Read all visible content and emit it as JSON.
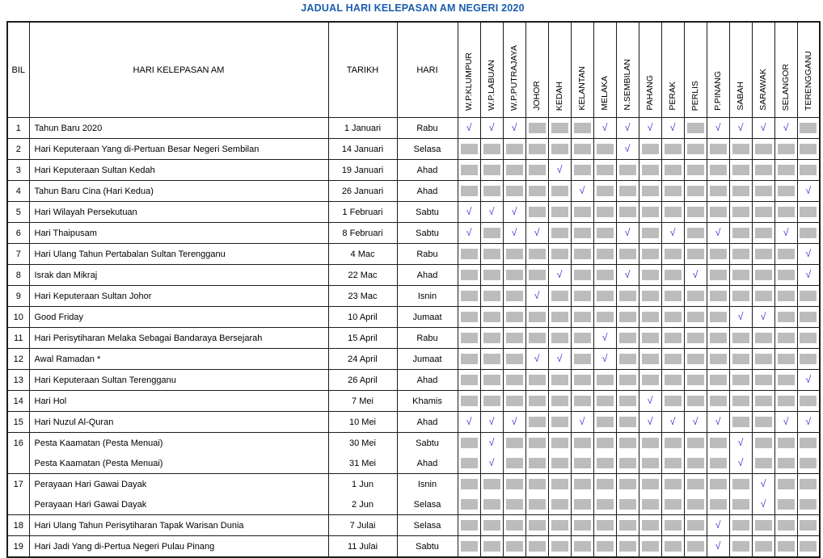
{
  "title": "JADUAL HARI KELEPASAN AM NEGERI 2020",
  "check_symbol": "√",
  "colors": {
    "title": "#1b5eae",
    "check": "#3e3ed6",
    "gray_box": "#bcbcbc",
    "border": "#1c1c1c"
  },
  "legend": {
    "check_means": "holiday-observed",
    "gray_box_means": "holiday-not-observed"
  },
  "table": {
    "columns": {
      "bil": "BIL",
      "name": "HARI KELEPASAN AM",
      "date": "TARIKH",
      "day": "HARI"
    },
    "states": [
      "W.P.KLUMPUR",
      "W.P.LABUAN",
      "W.P.PUTRAJAYA",
      "JOHOR",
      "KEDAH",
      "KELANTAN",
      "MELAKA",
      "N.SEMBILAN",
      "PAHANG",
      "PERAK",
      "PERLIS",
      "P.PINANG",
      "SABAH",
      "SARAWAK",
      "SELANGOR",
      "TERENGGANU"
    ],
    "rows": [
      {
        "bil": "1",
        "name": "Tahun Baru 2020",
        "date": "1 Januari",
        "day": "Rabu",
        "cont": false,
        "marks": [
          1,
          1,
          1,
          0,
          0,
          0,
          1,
          1,
          1,
          1,
          0,
          1,
          1,
          1,
          1,
          0
        ]
      },
      {
        "bil": "2",
        "name": "Hari Keputeraan Yang di-Pertuan Besar Negeri Sembilan",
        "date": "14 Januari",
        "day": "Selasa",
        "cont": false,
        "marks": [
          0,
          0,
          0,
          0,
          0,
          0,
          0,
          1,
          0,
          0,
          0,
          0,
          0,
          0,
          0,
          0
        ]
      },
      {
        "bil": "3",
        "name": "Hari Keputeraan Sultan Kedah",
        "date": "19 Januari",
        "day": "Ahad",
        "cont": false,
        "marks": [
          0,
          0,
          0,
          0,
          1,
          0,
          0,
          0,
          0,
          0,
          0,
          0,
          0,
          0,
          0,
          0
        ]
      },
      {
        "bil": "4",
        "name": "Tahun Baru Cina (Hari Kedua)",
        "date": "26 Januari",
        "day": "Ahad",
        "cont": false,
        "marks": [
          0,
          0,
          0,
          0,
          0,
          1,
          0,
          0,
          0,
          0,
          0,
          0,
          0,
          0,
          0,
          1
        ]
      },
      {
        "bil": "5",
        "name": "Hari Wilayah Persekutuan",
        "date": "1 Februari",
        "day": "Sabtu",
        "cont": false,
        "marks": [
          1,
          1,
          1,
          0,
          0,
          0,
          0,
          0,
          0,
          0,
          0,
          0,
          0,
          0,
          0,
          0
        ]
      },
      {
        "bil": "6",
        "name": "Hari Thaipusam",
        "date": "8 Februari",
        "day": "Sabtu",
        "cont": false,
        "marks": [
          1,
          0,
          1,
          1,
          0,
          0,
          0,
          1,
          0,
          1,
          0,
          1,
          0,
          0,
          1,
          0
        ]
      },
      {
        "bil": "7",
        "name": "Hari Ulang Tahun Pertabalan Sultan Terengganu",
        "date": "4 Mac",
        "day": "Rabu",
        "cont": false,
        "marks": [
          0,
          0,
          0,
          0,
          0,
          0,
          0,
          0,
          0,
          0,
          0,
          0,
          0,
          0,
          0,
          1
        ]
      },
      {
        "bil": "8",
        "name": "Israk dan Mikraj",
        "date": "22 Mac",
        "day": "Ahad",
        "cont": false,
        "marks": [
          0,
          0,
          0,
          0,
          1,
          0,
          0,
          1,
          0,
          0,
          1,
          0,
          0,
          0,
          0,
          1
        ]
      },
      {
        "bil": "9",
        "name": "Hari Keputeraan Sultan Johor",
        "date": "23 Mac",
        "day": "Isnin",
        "cont": false,
        "marks": [
          0,
          0,
          0,
          1,
          0,
          0,
          0,
          0,
          0,
          0,
          0,
          0,
          0,
          0,
          0,
          0
        ]
      },
      {
        "bil": "10",
        "name": "Good Friday",
        "date": "10 April",
        "day": "Jumaat",
        "cont": false,
        "marks": [
          0,
          0,
          0,
          0,
          0,
          0,
          0,
          0,
          0,
          0,
          0,
          0,
          1,
          1,
          0,
          0
        ]
      },
      {
        "bil": "11",
        "name": "Hari Perisytiharan Melaka Sebagai Bandaraya Bersejarah",
        "date": "15 April",
        "day": "Rabu",
        "cont": false,
        "marks": [
          0,
          0,
          0,
          0,
          0,
          0,
          1,
          0,
          0,
          0,
          0,
          0,
          0,
          0,
          0,
          0
        ]
      },
      {
        "bil": "12",
        "name": "Awal Ramadan *",
        "date": "24 April",
        "day": "Jumaat",
        "cont": false,
        "marks": [
          0,
          0,
          0,
          1,
          1,
          0,
          1,
          0,
          0,
          0,
          0,
          0,
          0,
          0,
          0,
          0
        ]
      },
      {
        "bil": "13",
        "name": "Hari Keputeraan Sultan Terengganu",
        "date": "26 April",
        "day": "Ahad",
        "cont": false,
        "marks": [
          0,
          0,
          0,
          0,
          0,
          0,
          0,
          0,
          0,
          0,
          0,
          0,
          0,
          0,
          0,
          1
        ]
      },
      {
        "bil": "14",
        "name": "Hari Hol",
        "date": "7 Mei",
        "day": "Khamis",
        "cont": false,
        "marks": [
          0,
          0,
          0,
          0,
          0,
          0,
          0,
          0,
          1,
          0,
          0,
          0,
          0,
          0,
          0,
          0
        ]
      },
      {
        "bil": "15",
        "name": "Hari Nuzul Al-Quran",
        "date": "10 Mei",
        "day": "Ahad",
        "cont": false,
        "marks": [
          1,
          1,
          1,
          0,
          0,
          1,
          0,
          0,
          1,
          1,
          1,
          1,
          0,
          0,
          1,
          1
        ]
      },
      {
        "bil": "16",
        "name": "Pesta Kaamatan (Pesta Menuai)",
        "date": "30 Mei",
        "day": "Sabtu",
        "cont": false,
        "marks": [
          0,
          1,
          0,
          0,
          0,
          0,
          0,
          0,
          0,
          0,
          0,
          0,
          1,
          0,
          0,
          0
        ]
      },
      {
        "bil": "",
        "name": "Pesta Kaamatan (Pesta Menuai)",
        "date": "31 Mei",
        "day": "Ahad",
        "cont": true,
        "marks": [
          0,
          1,
          0,
          0,
          0,
          0,
          0,
          0,
          0,
          0,
          0,
          0,
          1,
          0,
          0,
          0
        ]
      },
      {
        "bil": "17",
        "name": "Perayaan Hari Gawai Dayak",
        "date": "1 Jun",
        "day": "Isnin",
        "cont": false,
        "marks": [
          0,
          0,
          0,
          0,
          0,
          0,
          0,
          0,
          0,
          0,
          0,
          0,
          0,
          1,
          0,
          0
        ]
      },
      {
        "bil": "",
        "name": "Perayaan Hari Gawai Dayak",
        "date": "2 Jun",
        "day": "Selasa",
        "cont": true,
        "marks": [
          0,
          0,
          0,
          0,
          0,
          0,
          0,
          0,
          0,
          0,
          0,
          0,
          0,
          1,
          0,
          0
        ]
      },
      {
        "bil": "18",
        "name": "Hari Ulang Tahun Perisytiharan Tapak Warisan Dunia",
        "date": "7 Julai",
        "day": "Selasa",
        "cont": false,
        "marks": [
          0,
          0,
          0,
          0,
          0,
          0,
          0,
          0,
          0,
          0,
          0,
          1,
          0,
          0,
          0,
          0
        ]
      },
      {
        "bil": "19",
        "name": "Hari Jadi Yang di-Pertua Negeri Pulau Pinang",
        "date": "11 Julai",
        "day": "Sabtu",
        "cont": false,
        "marks": [
          0,
          0,
          0,
          0,
          0,
          0,
          0,
          0,
          0,
          0,
          0,
          1,
          0,
          0,
          0,
          0
        ]
      }
    ]
  }
}
